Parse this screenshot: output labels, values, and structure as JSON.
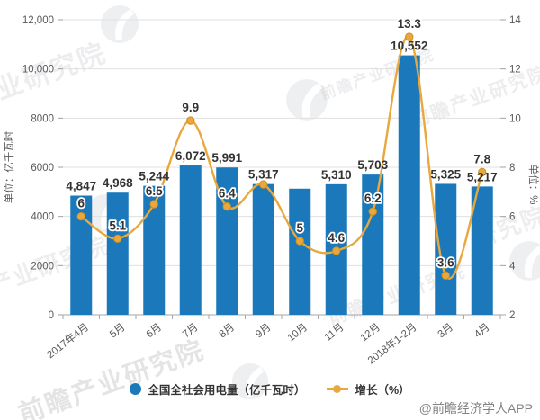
{
  "chart_data": {
    "type": "bar+line combo",
    "title": "",
    "categories": [
      "2017年4月",
      "5月",
      "6月",
      "7月",
      "8月",
      "9月",
      "10月",
      "11月",
      "12月",
      "2018年1-2月",
      "3月",
      "4月"
    ],
    "series": [
      {
        "name": "全国全社会用电量（亿千瓦时）",
        "type": "bar",
        "axis": "left",
        "color": "#1A78BB",
        "values": [
          4847,
          4968,
          5244,
          6072,
          5991,
          5317,
          5130,
          5310,
          5703,
          10552,
          5325,
          5217
        ],
        "labels": [
          "4,847",
          "4,968",
          "5,244",
          "6,072",
          "5,991",
          "5,317",
          "",
          "5,310",
          "5,703",
          "10,552",
          "5,325",
          "5,217"
        ]
      },
      {
        "name": "增长（%）",
        "type": "line",
        "axis": "right",
        "color": "#E8A83E",
        "marker_edge": "#D18F1F",
        "values": [
          6,
          5.1,
          6.5,
          9.9,
          6.4,
          7.3,
          5,
          4.6,
          6.2,
          13.3,
          3.6,
          7.8
        ],
        "labels": [
          "6",
          "5.1",
          "6.5",
          "9.9",
          "6.4",
          "",
          "5",
          "4.6",
          "6.2",
          "13.3",
          "3.6",
          "7.8"
        ]
      }
    ],
    "left_axis": {
      "title": "单位：亿千瓦时",
      "min": 0,
      "max": 12000,
      "tick_values": [
        0,
        2000,
        4000,
        6000,
        8000,
        10000,
        12000
      ],
      "tick_labels": [
        "0",
        "2000",
        "4000",
        "6000",
        "8000",
        "10,000",
        "12,000"
      ]
    },
    "right_axis": {
      "title": "单位：%",
      "min": 2,
      "max": 14,
      "tick_values": [
        2,
        4,
        6,
        8,
        10,
        12,
        14
      ],
      "tick_labels": [
        "2",
        "4",
        "6",
        "8",
        "10",
        "12",
        "14"
      ]
    },
    "grid": true,
    "legend_position": "bottom"
  },
  "legend": {
    "bar_label": "全国全社会用电量（亿千瓦时）",
    "line_label": "增长（%）"
  },
  "attribution": "@前瞻经济学人APP",
  "watermark": {
    "brand": "前瞻产业研究院",
    "texts": [
      "业研究院",
      "前瞻产业研究院",
      "产业研究院",
      "研究院",
      "前瞻产业研究院",
      "前瞻产业研究院",
      "前瞻产业研究院"
    ]
  }
}
